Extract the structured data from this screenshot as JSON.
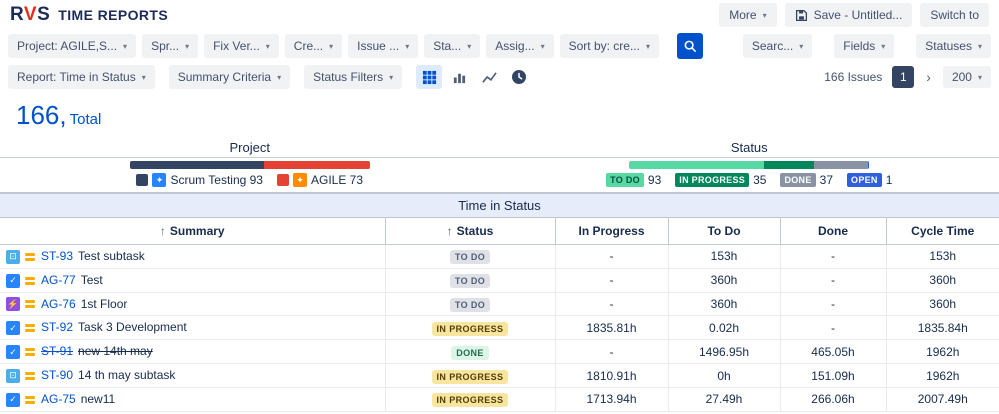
{
  "icons": {
    "chevron_down": "▾",
    "chevron_right": "›",
    "sort_ascending": "↑"
  },
  "colors": {
    "accent": "#0052CC",
    "link": "#0052CC",
    "page_box": "#344563"
  },
  "header": {
    "logo": [
      "R",
      "V",
      "S"
    ],
    "title": "TIME REPORTS",
    "more_label": "More",
    "save_label": "Save - Untitled...",
    "switch_label": "Switch to"
  },
  "filter_bar": {
    "row1_left": [
      "Project: AGILE,S...",
      "Spr...",
      "Fix Ver...",
      "Cre...",
      "Issue ...",
      "Sta...",
      "Assig...",
      "Sort by: cre..."
    ],
    "row1_right": [
      "Searc...",
      "Fields",
      "Statuses"
    ],
    "row2_left": [
      "Report: Time in Status",
      "Summary Criteria",
      "Status Filters"
    ]
  },
  "pagination": {
    "issues_label": "166 Issues",
    "current_page": "1",
    "page_size": "200"
  },
  "summary_heading": {
    "count": "166,",
    "label": "Total"
  },
  "legend": {
    "project": {
      "title": "Project",
      "total": 166,
      "items": [
        {
          "label": "Scrum Testing 93",
          "value": 93,
          "color": "#344563",
          "avatar": "#2684FF",
          "avatar_glyph": "✦"
        },
        {
          "label": "AGILE 73",
          "value": 73,
          "color": "#E34234",
          "avatar": "#FF8B00",
          "avatar_glyph": "✦"
        }
      ]
    },
    "status": {
      "title": "Status",
      "total": 166,
      "items": [
        {
          "label": "TO DO",
          "count": "93",
          "value": 93,
          "bg": "#57D9A3",
          "fg": "#05503A"
        },
        {
          "label": "IN PROGRESS",
          "count": "35",
          "value": 35,
          "bg": "#00875A",
          "fg": "#FFFFFF"
        },
        {
          "label": "DONE",
          "count": "37",
          "value": 37,
          "bg": "#8993A4",
          "fg": "#FFFFFF"
        },
        {
          "label": "OPEN",
          "count": "1",
          "value": 1,
          "bg": "#2F5FDB",
          "fg": "#FFFFFF"
        }
      ]
    }
  },
  "table": {
    "band_title": "Time in Status",
    "columns": [
      {
        "label": "Summary",
        "sort": "↑"
      },
      {
        "label": "Status",
        "sort": "↑"
      },
      {
        "label": "In Progress"
      },
      {
        "label": "To Do"
      },
      {
        "label": "Done"
      },
      {
        "label": "Cycle Time"
      }
    ],
    "status_badges": {
      "TO DO": {
        "bg": "#DFE1E6",
        "fg": "#505F79"
      },
      "IN PROGRESS": {
        "bg": "#F8E6A0",
        "fg": "#533F04"
      },
      "DONE": {
        "bg": "#DCF5E7",
        "fg": "#216E4E"
      }
    },
    "issue_types": {
      "task": {
        "color": "#2684FF",
        "glyph": "✓"
      },
      "subtask": {
        "color": "#4BAEE8",
        "glyph": "⊡"
      },
      "epic": {
        "color": "#904EE2",
        "glyph": "⚡"
      }
    },
    "priority": {
      "name": "medium",
      "color": "#FFAB00"
    },
    "rows": [
      {
        "type": "subtask",
        "key": "ST-93",
        "summary": "Test subtask",
        "status": "TO DO",
        "in_progress": "-",
        "to_do": "153h",
        "done": "-",
        "cycle": "153h",
        "resolved": false
      },
      {
        "type": "task",
        "key": "AG-77",
        "summary": "Test",
        "status": "TO DO",
        "in_progress": "-",
        "to_do": "360h",
        "done": "-",
        "cycle": "360h",
        "resolved": false
      },
      {
        "type": "epic",
        "key": "AG-76",
        "summary": "1st Floor",
        "status": "TO DO",
        "in_progress": "-",
        "to_do": "360h",
        "done": "-",
        "cycle": "360h",
        "resolved": false
      },
      {
        "type": "task",
        "key": "ST-92",
        "summary": "Task 3 Development",
        "status": "IN PROGRESS",
        "in_progress": "1835.81h",
        "to_do": "0.02h",
        "done": "-",
        "cycle": "1835.84h",
        "resolved": false
      },
      {
        "type": "task",
        "key": "ST-91",
        "summary": "new 14th may",
        "status": "DONE",
        "in_progress": "-",
        "to_do": "1496.95h",
        "done": "465.05h",
        "cycle": "1962h",
        "resolved": true
      },
      {
        "type": "subtask",
        "key": "ST-90",
        "summary": "14 th may subtask",
        "status": "IN PROGRESS",
        "in_progress": "1810.91h",
        "to_do": "0h",
        "done": "151.09h",
        "cycle": "1962h",
        "resolved": false
      },
      {
        "type": "task",
        "key": "AG-75",
        "summary": "new11",
        "status": "IN PROGRESS",
        "in_progress": "1713.94h",
        "to_do": "27.49h",
        "done": "266.06h",
        "cycle": "2007.49h",
        "resolved": false
      }
    ]
  }
}
